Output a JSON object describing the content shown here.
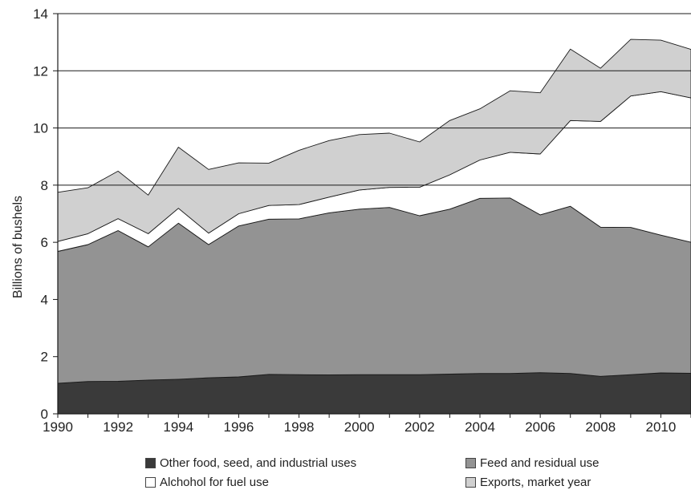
{
  "chart_data": {
    "type": "area",
    "stacked": true,
    "ylabel": "Billions of bushels",
    "xlabel": "",
    "ylim": [
      0,
      14
    ],
    "xlim": [
      1990,
      2011
    ],
    "yticks": [
      0,
      2,
      4,
      6,
      8,
      10,
      12,
      14
    ],
    "xticks": [
      1990,
      1992,
      1994,
      1996,
      1998,
      2000,
      2002,
      2004,
      2006,
      2008,
      2010
    ],
    "gridlines": [
      8,
      10,
      12,
      14
    ],
    "x": [
      1990,
      1991,
      1992,
      1993,
      1994,
      1995,
      1996,
      1997,
      1998,
      1999,
      2000,
      2001,
      2002,
      2003,
      2004,
      2005,
      2006,
      2007,
      2008,
      2009,
      2010,
      2011
    ],
    "series": [
      {
        "name": "Other food, seed, and industrial uses",
        "color": "#3a3a3a",
        "values": [
          1.07,
          1.13,
          1.14,
          1.18,
          1.21,
          1.26,
          1.29,
          1.38,
          1.37,
          1.36,
          1.37,
          1.37,
          1.37,
          1.39,
          1.41,
          1.41,
          1.44,
          1.41,
          1.31,
          1.37,
          1.43,
          1.42
        ]
      },
      {
        "name": "Feed and residual use",
        "color": "#939393",
        "values": [
          4.61,
          4.79,
          5.27,
          4.66,
          5.46,
          4.66,
          5.28,
          5.43,
          5.45,
          5.67,
          5.79,
          5.85,
          5.56,
          5.77,
          6.13,
          6.14,
          5.52,
          5.85,
          5.22,
          5.15,
          4.82,
          4.58
        ]
      },
      {
        "name": "Alchohol for fuel use",
        "color": "#ffffff",
        "values": [
          0.35,
          0.38,
          0.42,
          0.46,
          0.52,
          0.4,
          0.43,
          0.48,
          0.5,
          0.55,
          0.67,
          0.7,
          1.0,
          1.2,
          1.34,
          1.6,
          2.13,
          3.0,
          3.7,
          4.6,
          5.02,
          5.05
        ]
      },
      {
        "name": "Exports, market year",
        "color": "#d0d0d0",
        "values": [
          1.72,
          1.61,
          1.66,
          1.35,
          2.14,
          2.23,
          1.78,
          1.48,
          1.9,
          1.98,
          1.94,
          1.9,
          1.58,
          1.9,
          1.79,
          2.15,
          2.14,
          2.5,
          1.86,
          1.98,
          1.8,
          1.7
        ]
      }
    ]
  }
}
